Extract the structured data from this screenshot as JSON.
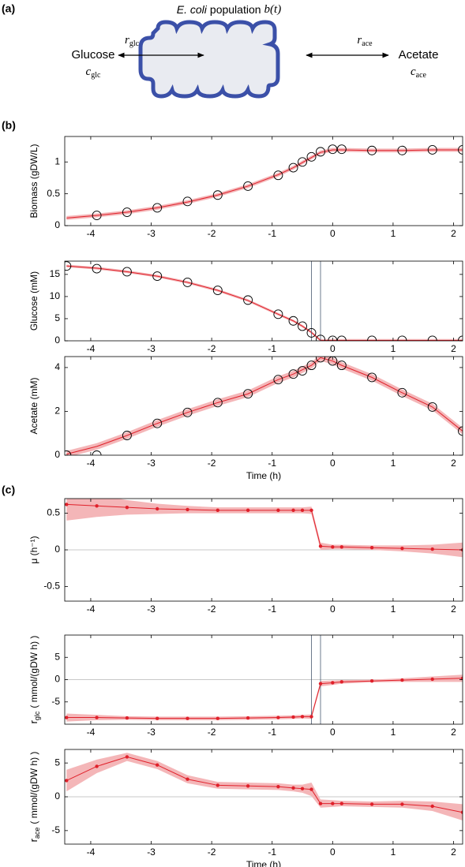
{
  "panels": [
    "(a)",
    "(b)",
    "(c)"
  ],
  "diagram": {
    "title": [
      "E. coli",
      "population",
      "b(t)"
    ],
    "left": {
      "name": "Glucose",
      "rate": [
        "r",
        "glc"
      ],
      "concentration": [
        "c",
        "glc"
      ]
    },
    "right": {
      "name": "Acetate",
      "rate": [
        "r",
        "ace"
      ],
      "concentration": [
        "c",
        "ace"
      ]
    }
  },
  "chart_data": [
    {
      "type": "scatter",
      "ylabel": {
        "text": "Biomass (gDW/L)"
      },
      "x": [
        -4.4,
        -3.9,
        -3.4,
        -2.9,
        -2.4,
        -1.9,
        -1.4,
        -0.9,
        -0.65,
        -0.5,
        -0.35,
        -0.2,
        0,
        0.15,
        0.65,
        1.15,
        1.65,
        2.15
      ],
      "measured": [
        null,
        0.16,
        0.21,
        0.28,
        0.38,
        0.48,
        0.62,
        0.79,
        0.91,
        1.0,
        1.08,
        1.16,
        1.2,
        1.2,
        1.18,
        1.18,
        1.19,
        1.19
      ],
      "fit": {
        "values": [
          0.12,
          0.16,
          0.21,
          0.28,
          0.37,
          0.48,
          0.62,
          0.8,
          0.91,
          0.99,
          1.07,
          1.15,
          1.19,
          1.19,
          1.18,
          1.18,
          1.19,
          1.19
        ],
        "errors": [
          0.03,
          0.03,
          0.03,
          0.03,
          0.03,
          0.03,
          0.03,
          0.03,
          0.03,
          0.03,
          0.03,
          0.03,
          0.03,
          0.03,
          0.03,
          0.03,
          0.03,
          0.03
        ]
      },
      "color": "#e0202a",
      "band_color": "#f4b6b8",
      "marker_color": "#000000",
      "xlim": [
        -4.43,
        2.15
      ],
      "xticks": [
        -4,
        -3,
        -2,
        -1,
        0,
        1,
        2
      ],
      "ylim": [
        0,
        1.4
      ],
      "yticks": [
        0,
        0.5,
        1
      ]
    },
    {
      "type": "scatter",
      "ylabel": {
        "text": "Glucose (mM)"
      },
      "x": [
        -4.4,
        -3.9,
        -3.4,
        -2.9,
        -2.4,
        -1.9,
        -1.4,
        -0.9,
        -0.65,
        -0.5,
        -0.35,
        -0.2,
        0,
        0.15,
        0.65,
        1.15,
        1.65,
        2.15
      ],
      "measured": [
        16.9,
        16.3,
        15.6,
        14.6,
        13.2,
        11.4,
        9.2,
        6.0,
        4.5,
        3.3,
        1.8,
        0.3,
        0.1,
        0.1,
        0.1,
        0.1,
        0.1,
        0.1
      ],
      "fit": {
        "values": [
          16.9,
          16.4,
          15.6,
          14.6,
          13.2,
          11.4,
          9.1,
          6.0,
          4.5,
          3.3,
          1.9,
          0.1,
          0.1,
          0.1,
          0.1,
          0.1,
          0.1,
          0.1
        ],
        "errors": [
          0.3,
          0.3,
          0.3,
          0.3,
          0.3,
          0.3,
          0.3,
          0.3,
          0.3,
          0.3,
          0.3,
          0.3,
          0.3,
          0.3,
          0.3,
          0.3,
          0.3,
          0.3
        ]
      },
      "vlines": [
        -0.35,
        -0.2
      ],
      "color": "#e0202a",
      "band_color": "#f4b6b8",
      "marker_color": "#000000",
      "xlim": [
        -4.43,
        2.15
      ],
      "xticks": [
        -4,
        -3,
        -2,
        -1,
        0,
        1,
        2
      ],
      "ylim": [
        0,
        18
      ],
      "yticks": [
        0,
        5,
        10,
        15
      ]
    },
    {
      "type": "scatter",
      "ylabel": {
        "text": "Acetate (mM)"
      },
      "xlabel": "Time (h)",
      "x": [
        -4.4,
        -3.9,
        -3.4,
        -2.9,
        -2.4,
        -1.9,
        -1.4,
        -0.9,
        -0.65,
        -0.5,
        -0.35,
        -0.2,
        0,
        0.15,
        0.65,
        1.15,
        1.65,
        2.15
      ],
      "measured": [
        0.0,
        0.0,
        0.9,
        1.45,
        1.95,
        2.4,
        2.8,
        3.45,
        3.7,
        3.85,
        4.1,
        4.45,
        4.3,
        4.1,
        3.55,
        2.85,
        2.2,
        1.1
      ],
      "fit": {
        "values": [
          0.05,
          0.4,
          0.9,
          1.45,
          1.95,
          2.4,
          2.8,
          3.45,
          3.7,
          3.9,
          4.1,
          4.45,
          4.3,
          4.1,
          3.55,
          2.85,
          2.2,
          1.1
        ],
        "errors": [
          0.15,
          0.15,
          0.15,
          0.15,
          0.15,
          0.15,
          0.15,
          0.15,
          0.15,
          0.15,
          0.15,
          0.15,
          0.15,
          0.15,
          0.15,
          0.15,
          0.15,
          0.15
        ]
      },
      "color": "#e0202a",
      "band_color": "#f4b6b8",
      "marker_color": "#000000",
      "xlim": [
        -4.43,
        2.15
      ],
      "xticks": [
        -4,
        -3,
        -2,
        -1,
        0,
        1,
        2
      ],
      "ylim": [
        0,
        4.5
      ],
      "yticks": [
        0,
        2,
        4
      ]
    },
    {
      "type": "line",
      "ylabel": {
        "text": "μ (h⁻¹)"
      },
      "x": [
        -4.4,
        -3.9,
        -3.4,
        -2.9,
        -2.4,
        -1.9,
        -1.4,
        -0.9,
        -0.65,
        -0.5,
        -0.35,
        -0.2,
        0,
        0.15,
        0.65,
        1.15,
        1.65,
        2.15
      ],
      "values": [
        0.62,
        0.6,
        0.58,
        0.56,
        0.55,
        0.54,
        0.54,
        0.54,
        0.54,
        0.54,
        0.54,
        0.05,
        0.04,
        0.04,
        0.03,
        0.02,
        0.01,
        0.0
      ],
      "errors": [
        0.22,
        0.15,
        0.1,
        0.07,
        0.05,
        0.04,
        0.04,
        0.04,
        0.04,
        0.04,
        0.05,
        0.05,
        0.03,
        0.03,
        0.03,
        0.04,
        0.06,
        0.1
      ],
      "reference_line": 0,
      "color": "#e0202a",
      "band_color": "#f4b6b8",
      "xlim": [
        -4.43,
        2.15
      ],
      "xticks": [
        -4,
        -3,
        -2,
        -1,
        0,
        1,
        2
      ],
      "ylim": [
        -0.7,
        0.7
      ],
      "yticks": [
        -0.5,
        0,
        0.5
      ]
    },
    {
      "type": "line",
      "ylabel": {
        "symbol": "r",
        "subscript": "glc",
        "text": "( mmol/(gDW h) )"
      },
      "x": [
        -4.4,
        -3.9,
        -3.4,
        -2.9,
        -2.4,
        -1.9,
        -1.4,
        -0.9,
        -0.65,
        -0.5,
        -0.35,
        -0.2,
        0,
        0.15,
        0.65,
        1.15,
        1.65,
        2.15
      ],
      "values": [
        -8.5,
        -8.5,
        -8.6,
        -8.7,
        -8.7,
        -8.7,
        -8.6,
        -8.5,
        -8.4,
        -8.3,
        -8.3,
        -0.9,
        -0.7,
        -0.5,
        -0.3,
        -0.1,
        0.1,
        0.3
      ],
      "errors": [
        0.9,
        0.6,
        0.4,
        0.4,
        0.4,
        0.4,
        0.4,
        0.4,
        0.4,
        0.4,
        0.5,
        0.6,
        0.5,
        0.4,
        0.3,
        0.4,
        0.6,
        0.8
      ],
      "reference_line": 0,
      "vlines": [
        -0.35,
        -0.2
      ],
      "color": "#e0202a",
      "band_color": "#f4b6b8",
      "xlim": [
        -4.43,
        2.15
      ],
      "xticks": [
        -4,
        -3,
        -2,
        -1,
        0,
        1,
        2
      ],
      "ylim": [
        -10,
        10
      ],
      "yticks": [
        -5,
        0,
        5
      ]
    },
    {
      "type": "line",
      "ylabel": {
        "symbol": "r",
        "subscript": "ace",
        "text": "( mmol/(gDW h) )"
      },
      "xlabel": "Time (h)",
      "x": [
        -4.4,
        -3.9,
        -3.4,
        -2.9,
        -2.4,
        -1.9,
        -1.4,
        -0.9,
        -0.65,
        -0.5,
        -0.35,
        -0.2,
        0,
        0.15,
        0.65,
        1.15,
        1.65,
        2.15
      ],
      "values": [
        2.4,
        4.5,
        5.9,
        4.7,
        2.6,
        1.7,
        1.6,
        1.5,
        1.3,
        1.2,
        1.1,
        -1.0,
        -1.0,
        -1.0,
        -1.1,
        -1.1,
        -1.4,
        -2.3
      ],
      "errors": [
        1.6,
        1.0,
        0.6,
        0.6,
        0.6,
        0.5,
        0.5,
        0.5,
        0.5,
        0.6,
        1.0,
        0.6,
        0.5,
        0.4,
        0.4,
        0.5,
        0.7,
        1.2
      ],
      "reference_line": 0,
      "color": "#e0202a",
      "band_color": "#f4b6b8",
      "xlim": [
        -4.43,
        2.15
      ],
      "xticks": [
        -4,
        -3,
        -2,
        -1,
        0,
        1,
        2
      ],
      "ylim": [
        -7,
        7
      ],
      "yticks": [
        -5,
        0,
        5
      ]
    }
  ]
}
